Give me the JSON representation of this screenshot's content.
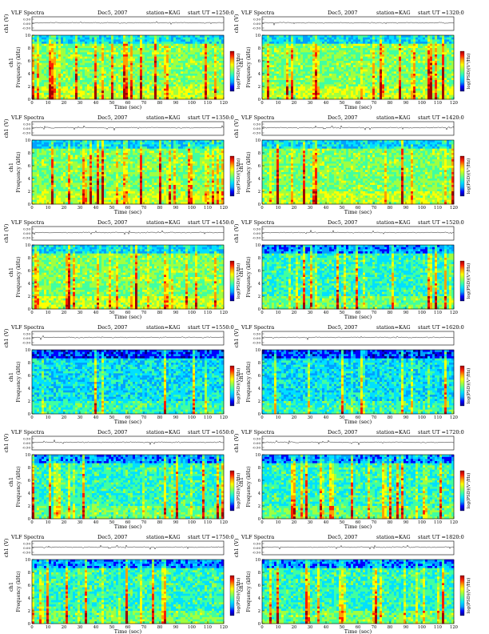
{
  "page": {
    "header_left": "VLF Spectra",
    "date": "Dec5, 2007",
    "station": "station=KAG",
    "start_prefix": "start  UT =",
    "waveform_ylabel": "ch1 (V)",
    "waveform_ticks": [
      "0.50",
      "0.00",
      "-0.50"
    ],
    "spectrogram_ylabel": "Frequency  (kHz)",
    "channel_label": "ch1",
    "xlabel": "Time  (sec)",
    "colorbar_label": "log(PSD)(V²/Hz)"
  },
  "chart_data": [
    {
      "type": "heatmap",
      "start_ut": "1250:0",
      "x": [
        0,
        10,
        20,
        30,
        40,
        50,
        60,
        70,
        80,
        90,
        100,
        110,
        120
      ],
      "xlim": [
        0,
        120
      ],
      "ylim": [
        0,
        10
      ],
      "y_ticks": [
        0,
        2,
        4,
        6,
        8,
        10
      ],
      "waveform_ylim": [
        -0.5,
        0.5
      ],
      "activity": "high"
    },
    {
      "type": "heatmap",
      "start_ut": "1320:0",
      "x": [
        0,
        10,
        20,
        30,
        40,
        50,
        60,
        70,
        80,
        90,
        100,
        110,
        120
      ],
      "xlim": [
        0,
        120
      ],
      "ylim": [
        0,
        10
      ],
      "y_ticks": [
        0,
        2,
        4,
        6,
        8,
        10
      ],
      "waveform_ylim": [
        -0.5,
        0.5
      ],
      "activity": "high"
    },
    {
      "type": "heatmap",
      "start_ut": "1350:0",
      "x": [
        0,
        10,
        20,
        30,
        40,
        50,
        60,
        70,
        80,
        90,
        100,
        110,
        120
      ],
      "xlim": [
        0,
        120
      ],
      "ylim": [
        0,
        10
      ],
      "y_ticks": [
        0,
        2,
        4,
        6,
        8,
        10
      ],
      "waveform_ylim": [
        -0.5,
        0.5
      ],
      "activity": "high"
    },
    {
      "type": "heatmap",
      "start_ut": "1420:0",
      "x": [
        0,
        10,
        20,
        30,
        40,
        50,
        60,
        70,
        80,
        90,
        100,
        110,
        120
      ],
      "xlim": [
        0,
        120
      ],
      "ylim": [
        0,
        10
      ],
      "y_ticks": [
        0,
        2,
        4,
        6,
        8,
        10
      ],
      "waveform_ylim": [
        -0.5,
        0.5
      ],
      "activity": "high"
    },
    {
      "type": "heatmap",
      "start_ut": "1450:0",
      "x": [
        0,
        10,
        20,
        30,
        40,
        50,
        60,
        70,
        80,
        90,
        100,
        110,
        120
      ],
      "xlim": [
        0,
        120
      ],
      "ylim": [
        0,
        10
      ],
      "y_ticks": [
        0,
        2,
        4,
        6,
        8,
        10
      ],
      "waveform_ylim": [
        -0.5,
        0.5
      ],
      "activity": "high"
    },
    {
      "type": "heatmap",
      "start_ut": "1520:0",
      "x": [
        0,
        10,
        20,
        30,
        40,
        50,
        60,
        70,
        80,
        90,
        100,
        110,
        120
      ],
      "xlim": [
        0,
        120
      ],
      "ylim": [
        0,
        10
      ],
      "y_ticks": [
        0,
        2,
        4,
        6,
        8,
        10
      ],
      "waveform_ylim": [
        -0.5,
        0.5
      ],
      "activity": "medium"
    },
    {
      "type": "heatmap",
      "start_ut": "1550:0",
      "x": [
        0,
        10,
        20,
        30,
        40,
        50,
        60,
        70,
        80,
        90,
        100,
        110,
        120
      ],
      "xlim": [
        0,
        120
      ],
      "ylim": [
        0,
        10
      ],
      "y_ticks": [
        0,
        2,
        4,
        6,
        8,
        10
      ],
      "waveform_ylim": [
        -0.5,
        0.5
      ],
      "activity": "low"
    },
    {
      "type": "heatmap",
      "start_ut": "1620:0",
      "x": [
        0,
        10,
        20,
        30,
        40,
        50,
        60,
        70,
        80,
        90,
        100,
        110,
        120
      ],
      "xlim": [
        0,
        120
      ],
      "ylim": [
        0,
        10
      ],
      "y_ticks": [
        0,
        2,
        4,
        6,
        8,
        10
      ],
      "waveform_ylim": [
        -0.5,
        0.5
      ],
      "activity": "low"
    },
    {
      "type": "heatmap",
      "start_ut": "1650:0",
      "x": [
        0,
        10,
        20,
        30,
        40,
        50,
        60,
        70,
        80,
        90,
        100,
        110,
        120
      ],
      "xlim": [
        0,
        120
      ],
      "ylim": [
        0,
        10
      ],
      "y_ticks": [
        0,
        2,
        4,
        6,
        8,
        10
      ],
      "waveform_ylim": [
        -0.5,
        0.5
      ],
      "activity": "medium"
    },
    {
      "type": "heatmap",
      "start_ut": "1720:0",
      "x": [
        0,
        10,
        20,
        30,
        40,
        50,
        60,
        70,
        80,
        90,
        100,
        110,
        120
      ],
      "xlim": [
        0,
        120
      ],
      "ylim": [
        0,
        10
      ],
      "y_ticks": [
        0,
        2,
        4,
        6,
        8,
        10
      ],
      "waveform_ylim": [
        -0.5,
        0.5
      ],
      "activity": "medium"
    },
    {
      "type": "heatmap",
      "start_ut": "1750:0",
      "x": [
        0,
        10,
        20,
        30,
        40,
        50,
        60,
        70,
        80,
        90,
        100,
        110,
        120
      ],
      "xlim": [
        0,
        120
      ],
      "ylim": [
        0,
        10
      ],
      "y_ticks": [
        0,
        2,
        4,
        6,
        8,
        10
      ],
      "waveform_ylim": [
        -0.5,
        0.5
      ],
      "activity": "medium"
    },
    {
      "type": "heatmap",
      "start_ut": "1820:0",
      "x": [
        0,
        10,
        20,
        30,
        40,
        50,
        60,
        70,
        80,
        90,
        100,
        110,
        120
      ],
      "xlim": [
        0,
        120
      ],
      "ylim": [
        0,
        10
      ],
      "y_ticks": [
        0,
        2,
        4,
        6,
        8,
        10
      ],
      "waveform_ylim": [
        -0.5,
        0.5
      ],
      "activity": "medium"
    }
  ],
  "colors": {
    "colormap": [
      "#00008a",
      "#0000ff",
      "#00a0ff",
      "#00e0ff",
      "#40ffa0",
      "#a0ff40",
      "#ffff00",
      "#ffa000",
      "#ff2000",
      "#a00000"
    ],
    "background": "#ffffff",
    "ink": "#000000"
  }
}
